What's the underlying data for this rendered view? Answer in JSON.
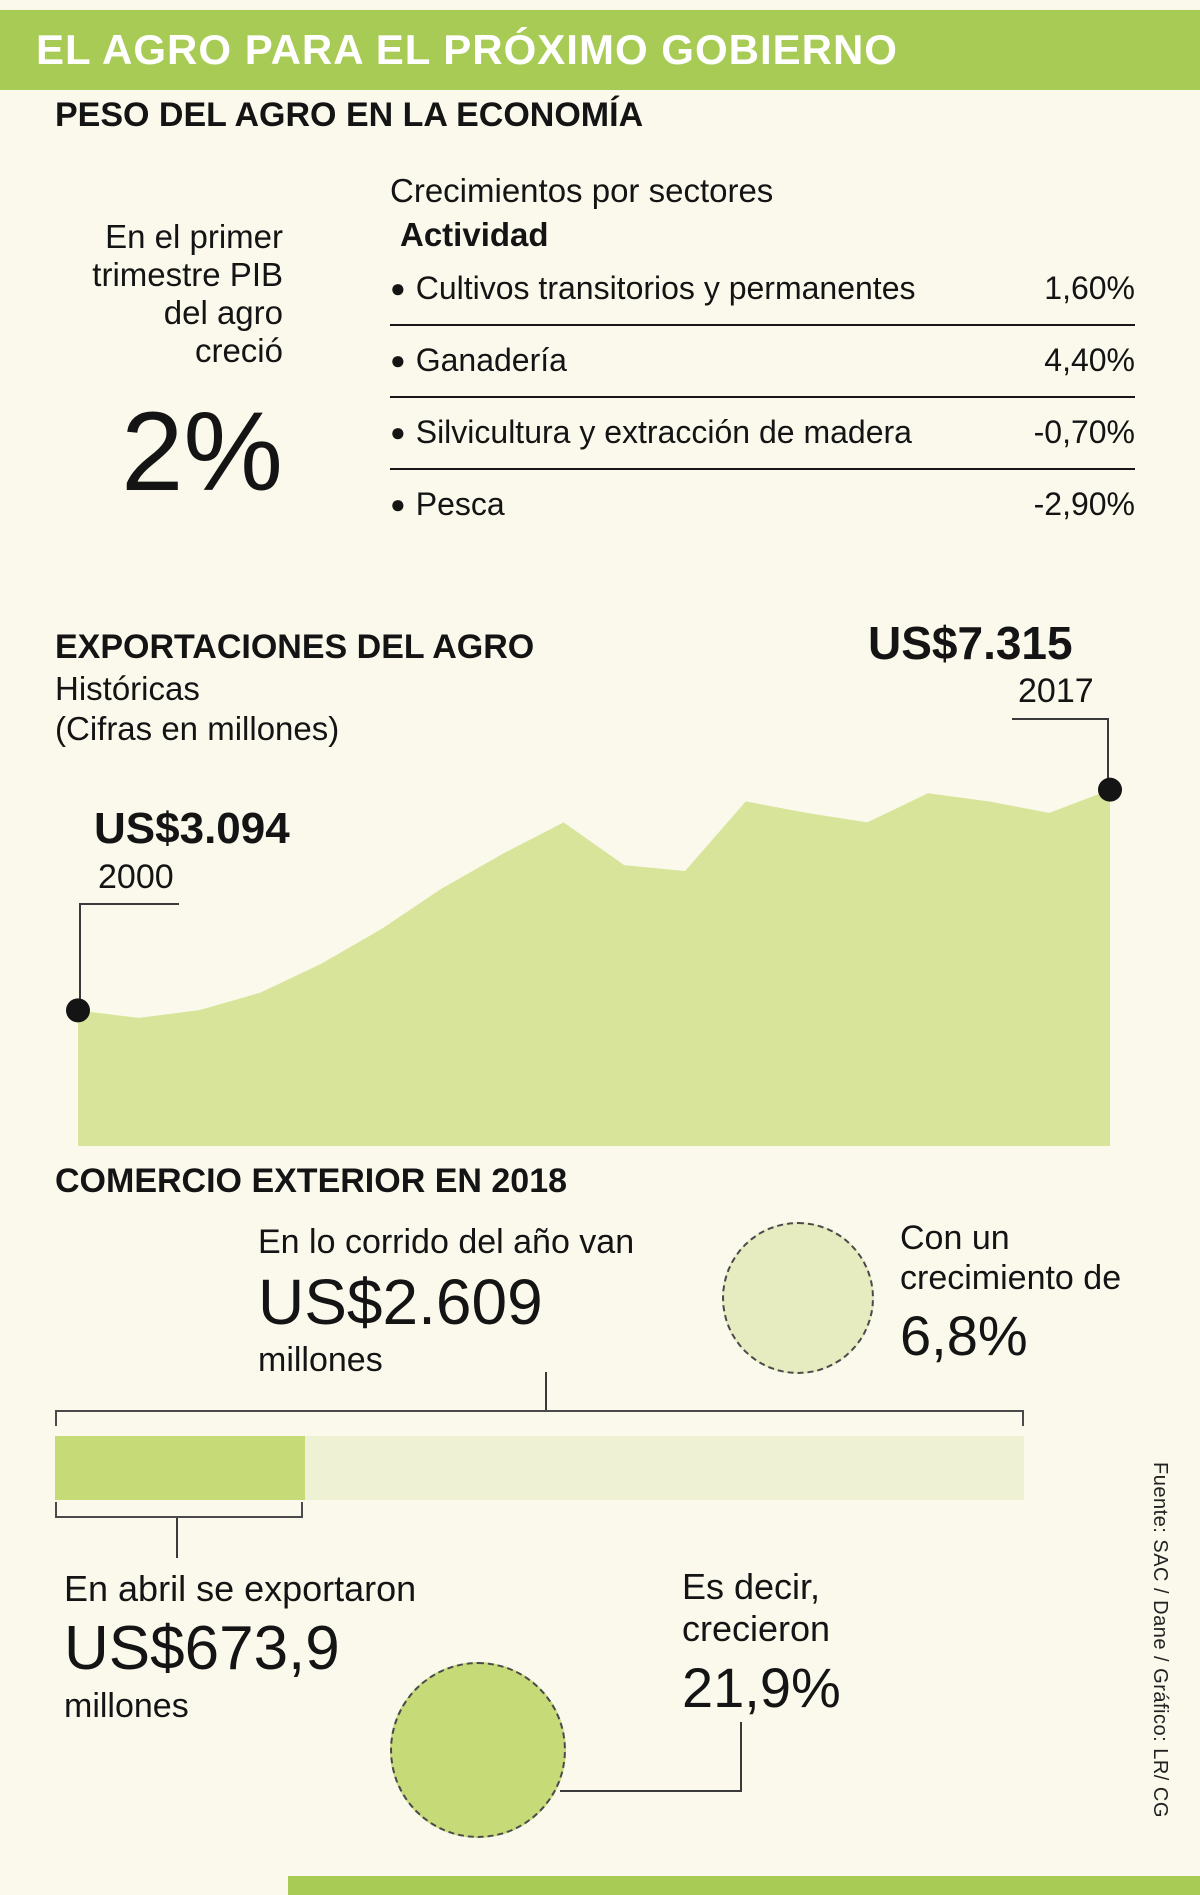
{
  "meta": {
    "bg": "#FAF9EC",
    "accent_green": "#A8CB55",
    "area_fill": "#D8E49A",
    "bar_dark": "#C6DA77",
    "bar_light": "#EEF1D3",
    "circle_light": "#E6ECC0",
    "text": "#141414"
  },
  "header": {
    "title": "EL AGRO PARA EL PRÓXIMO GOBIERNO"
  },
  "economy": {
    "section_title": "PESO DEL AGRO EN LA ECONOMÍA",
    "intro_lines": [
      "En el primer",
      "trimestre PIB",
      "del agro",
      "creció"
    ],
    "big_value": "2%",
    "table_title": "Crecimientos por sectores",
    "table_subtitle": "Actividad",
    "bullet": "●",
    "rows": [
      {
        "label": "Cultivos transitorios y permanentes",
        "value": "1,60%"
      },
      {
        "label": "Ganadería",
        "value": "4,40%"
      },
      {
        "label": "Silvicultura y extracción de madera",
        "value": "-0,70%"
      },
      {
        "label": "Pesca",
        "value": "-2,90%"
      }
    ]
  },
  "exports": {
    "section_title": "EXPORTACIONES DEL AGRO",
    "subtitle1": "Históricas",
    "subtitle2": "(Cifras en millones)",
    "start_label": "US$3.094",
    "start_year": "2000",
    "end_label": "US$7.315",
    "end_year": "2017"
  },
  "trade": {
    "section_title": "COMERCIO EXTERIOR EN 2018",
    "ytd_intro": "En lo corrido del año van",
    "ytd_value": "US$2.609",
    "ytd_unit": "millones",
    "growth_intro_lines": [
      "Con un",
      "crecimiento de"
    ],
    "growth_value": "6,8%",
    "april_intro": "En abril se exportaron",
    "april_value": "US$673,9",
    "april_unit": "millones",
    "april_growth_intro_lines": [
      "Es decir,",
      "crecieron"
    ],
    "april_growth_value": "21,9%"
  },
  "footer": {
    "credit": "Fuente: SAC / Dane / Gráfico: LR/ CG"
  },
  "chart_data": [
    {
      "type": "area",
      "title": "Exportaciones del agro - Históricas (Cifras en millones de US$)",
      "x": [
        2000,
        2001,
        2002,
        2003,
        2004,
        2005,
        2006,
        2007,
        2008,
        2009,
        2010,
        2011,
        2012,
        2013,
        2014,
        2015,
        2016,
        2017
      ],
      "values": [
        3094,
        2950,
        3100,
        3430,
        3980,
        4650,
        5430,
        6090,
        6690,
        5870,
        5760,
        7090,
        6870,
        6690,
        7245,
        7090,
        6870,
        7315
      ],
      "ylabel": "US$ millones",
      "ylim": [
        500,
        7500
      ],
      "grid": false,
      "legend": false,
      "annotations": [
        {
          "x": 2000,
          "label": "US$3.094"
        },
        {
          "x": 2017,
          "label": "US$7.315"
        }
      ]
    },
    {
      "type": "bar",
      "title": "Comercio exterior en 2018 (US$ millones)",
      "categories": [
        "Exportaciones de abril",
        "Exportaciones en lo corrido del año"
      ],
      "values": [
        673.9,
        2609
      ],
      "annotations": [
        "crecieron 21,9%",
        "crecimiento de 6,8%"
      ],
      "orientation": "horizontal"
    }
  ]
}
